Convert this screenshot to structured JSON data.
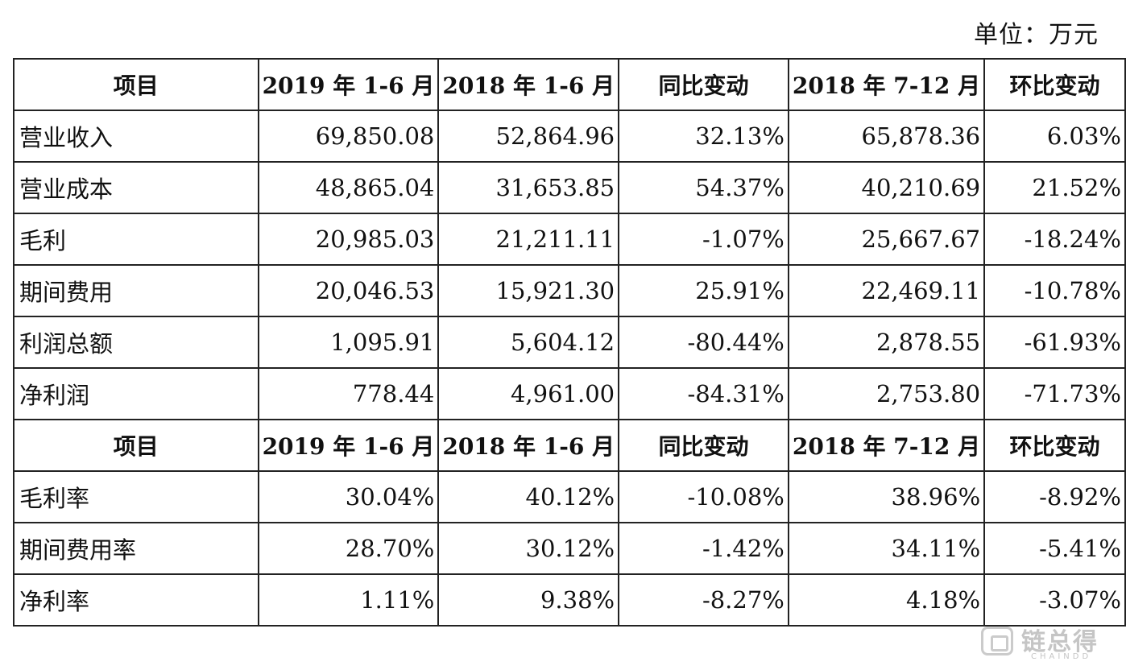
{
  "unit_label": "单位：万元",
  "header": [
    "项目",
    "2019 年 1-6 月",
    "2018 年 1-6 月",
    "同比变动",
    "2018 年 7-12 月",
    "环比变动"
  ],
  "rows_amount": [
    {
      "item": "营业收入",
      "v1": "69,850.08",
      "v2": "52,864.96",
      "v3": "32.13%",
      "v4": "65,878.36",
      "v5": "6.03%"
    },
    {
      "item": "营业成本",
      "v1": "48,865.04",
      "v2": "31,653.85",
      "v3": "54.37%",
      "v4": "40,210.69",
      "v5": "21.52%"
    },
    {
      "item": "毛利",
      "v1": "20,985.03",
      "v2": "21,211.11",
      "v3": "-1.07%",
      "v4": "25,667.67",
      "v5": "-18.24%"
    },
    {
      "item": "期间费用",
      "v1": "20,046.53",
      "v2": "15,921.30",
      "v3": "25.91%",
      "v4": "22,469.11",
      "v5": "-10.78%"
    },
    {
      "item": "利润总额",
      "v1": "1,095.91",
      "v2": "5,604.12",
      "v3": "-80.44%",
      "v4": "2,878.55",
      "v5": "-61.93%"
    },
    {
      "item": "净利润",
      "v1": "778.44",
      "v2": "4,961.00",
      "v3": "-84.31%",
      "v4": "2,753.80",
      "v5": "-71.73%"
    }
  ],
  "rows_ratio": [
    {
      "item": "毛利率",
      "v1": "30.04%",
      "v2": "40.12%",
      "v3": "-10.08%",
      "v4": "38.96%",
      "v5": "-8.92%"
    },
    {
      "item": "期间费用率",
      "v1": "28.70%",
      "v2": "30.12%",
      "v3": "-1.42%",
      "v4": "34.11%",
      "v5": "-5.41%"
    },
    {
      "item": "净利率",
      "v1": "1.11%",
      "v2": "9.38%",
      "v3": "-8.27%",
      "v4": "4.18%",
      "v5": "-3.07%"
    }
  ],
  "watermark": {
    "name": "链总得",
    "sub": "CHAINDD",
    "icon": "chaindd-logo-icon"
  }
}
